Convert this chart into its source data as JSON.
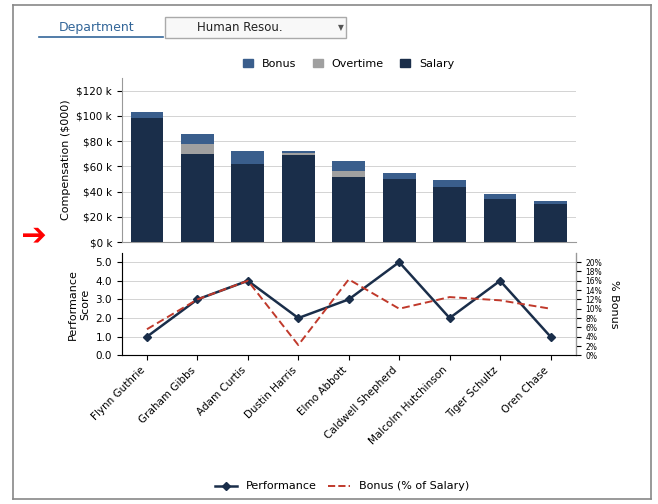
{
  "employees": [
    "Flynn Guthrie",
    "Graham Gibbs",
    "Adam Curtis",
    "Dustin Harris",
    "Elmo Abbott",
    "Caldwell Shepherd",
    "Malcolm Hutchinson",
    "Tiger Schultz",
    "Oren Chase"
  ],
  "salary": [
    98000,
    70000,
    62000,
    69000,
    52000,
    50000,
    44000,
    34000,
    30000
  ],
  "overtime": [
    0,
    7500,
    0,
    2000,
    4000,
    0,
    0,
    0,
    0
  ],
  "bonus": [
    5500,
    8500,
    10000,
    1500,
    8500,
    5000,
    5500,
    4000,
    3000
  ],
  "performance": [
    1.0,
    3.0,
    4.0,
    2.0,
    3.0,
    5.0,
    2.0,
    4.0,
    1.0
  ],
  "bonus_pct": [
    0.056,
    0.12,
    0.16,
    0.022,
    0.163,
    0.1,
    0.125,
    0.118,
    0.1
  ],
  "salary_color": "#1a2e4a",
  "overtime_color": "#a0a0a0",
  "bonus_color": "#3a5e8c",
  "performance_color": "#1a2e4a",
  "bonus_pct_color": "#c0392b",
  "bar_ylim": [
    0,
    130000
  ],
  "bar_yticks": [
    0,
    20000,
    40000,
    60000,
    80000,
    100000,
    120000
  ],
  "bar_ytick_labels": [
    "$0 k",
    "$20 k",
    "$40 k",
    "$60 k",
    "$80 k",
    "$100 k",
    "$120 k"
  ],
  "perf_ylim": [
    0.0,
    5.5
  ],
  "perf_yticks": [
    0.0,
    1.0,
    2.0,
    3.0,
    4.0,
    5.0
  ],
  "bonus_pct_ylim": [
    0,
    0.22
  ],
  "bonus_pct_yticks": [
    0,
    0.02,
    0.04,
    0.06,
    0.08,
    0.1,
    0.12,
    0.14,
    0.16,
    0.18,
    0.2
  ],
  "bonus_pct_ytick_labels": [
    "0%",
    "2%",
    "4%",
    "6%",
    "8%",
    "10%",
    "12%",
    "14%",
    "16%",
    "18%",
    "20%"
  ],
  "ylabel_top": "Compensation ($000)",
  "ylabel_bottom_line1": "Performance",
  "ylabel_bottom_line2": "Score",
  "ylabel_right": "% Bonus",
  "title_dept": "Department",
  "title_val": "Human Resou.",
  "background": "#ffffff",
  "grid_color": "#cccccc",
  "fig_bg": "#e8e8e8"
}
